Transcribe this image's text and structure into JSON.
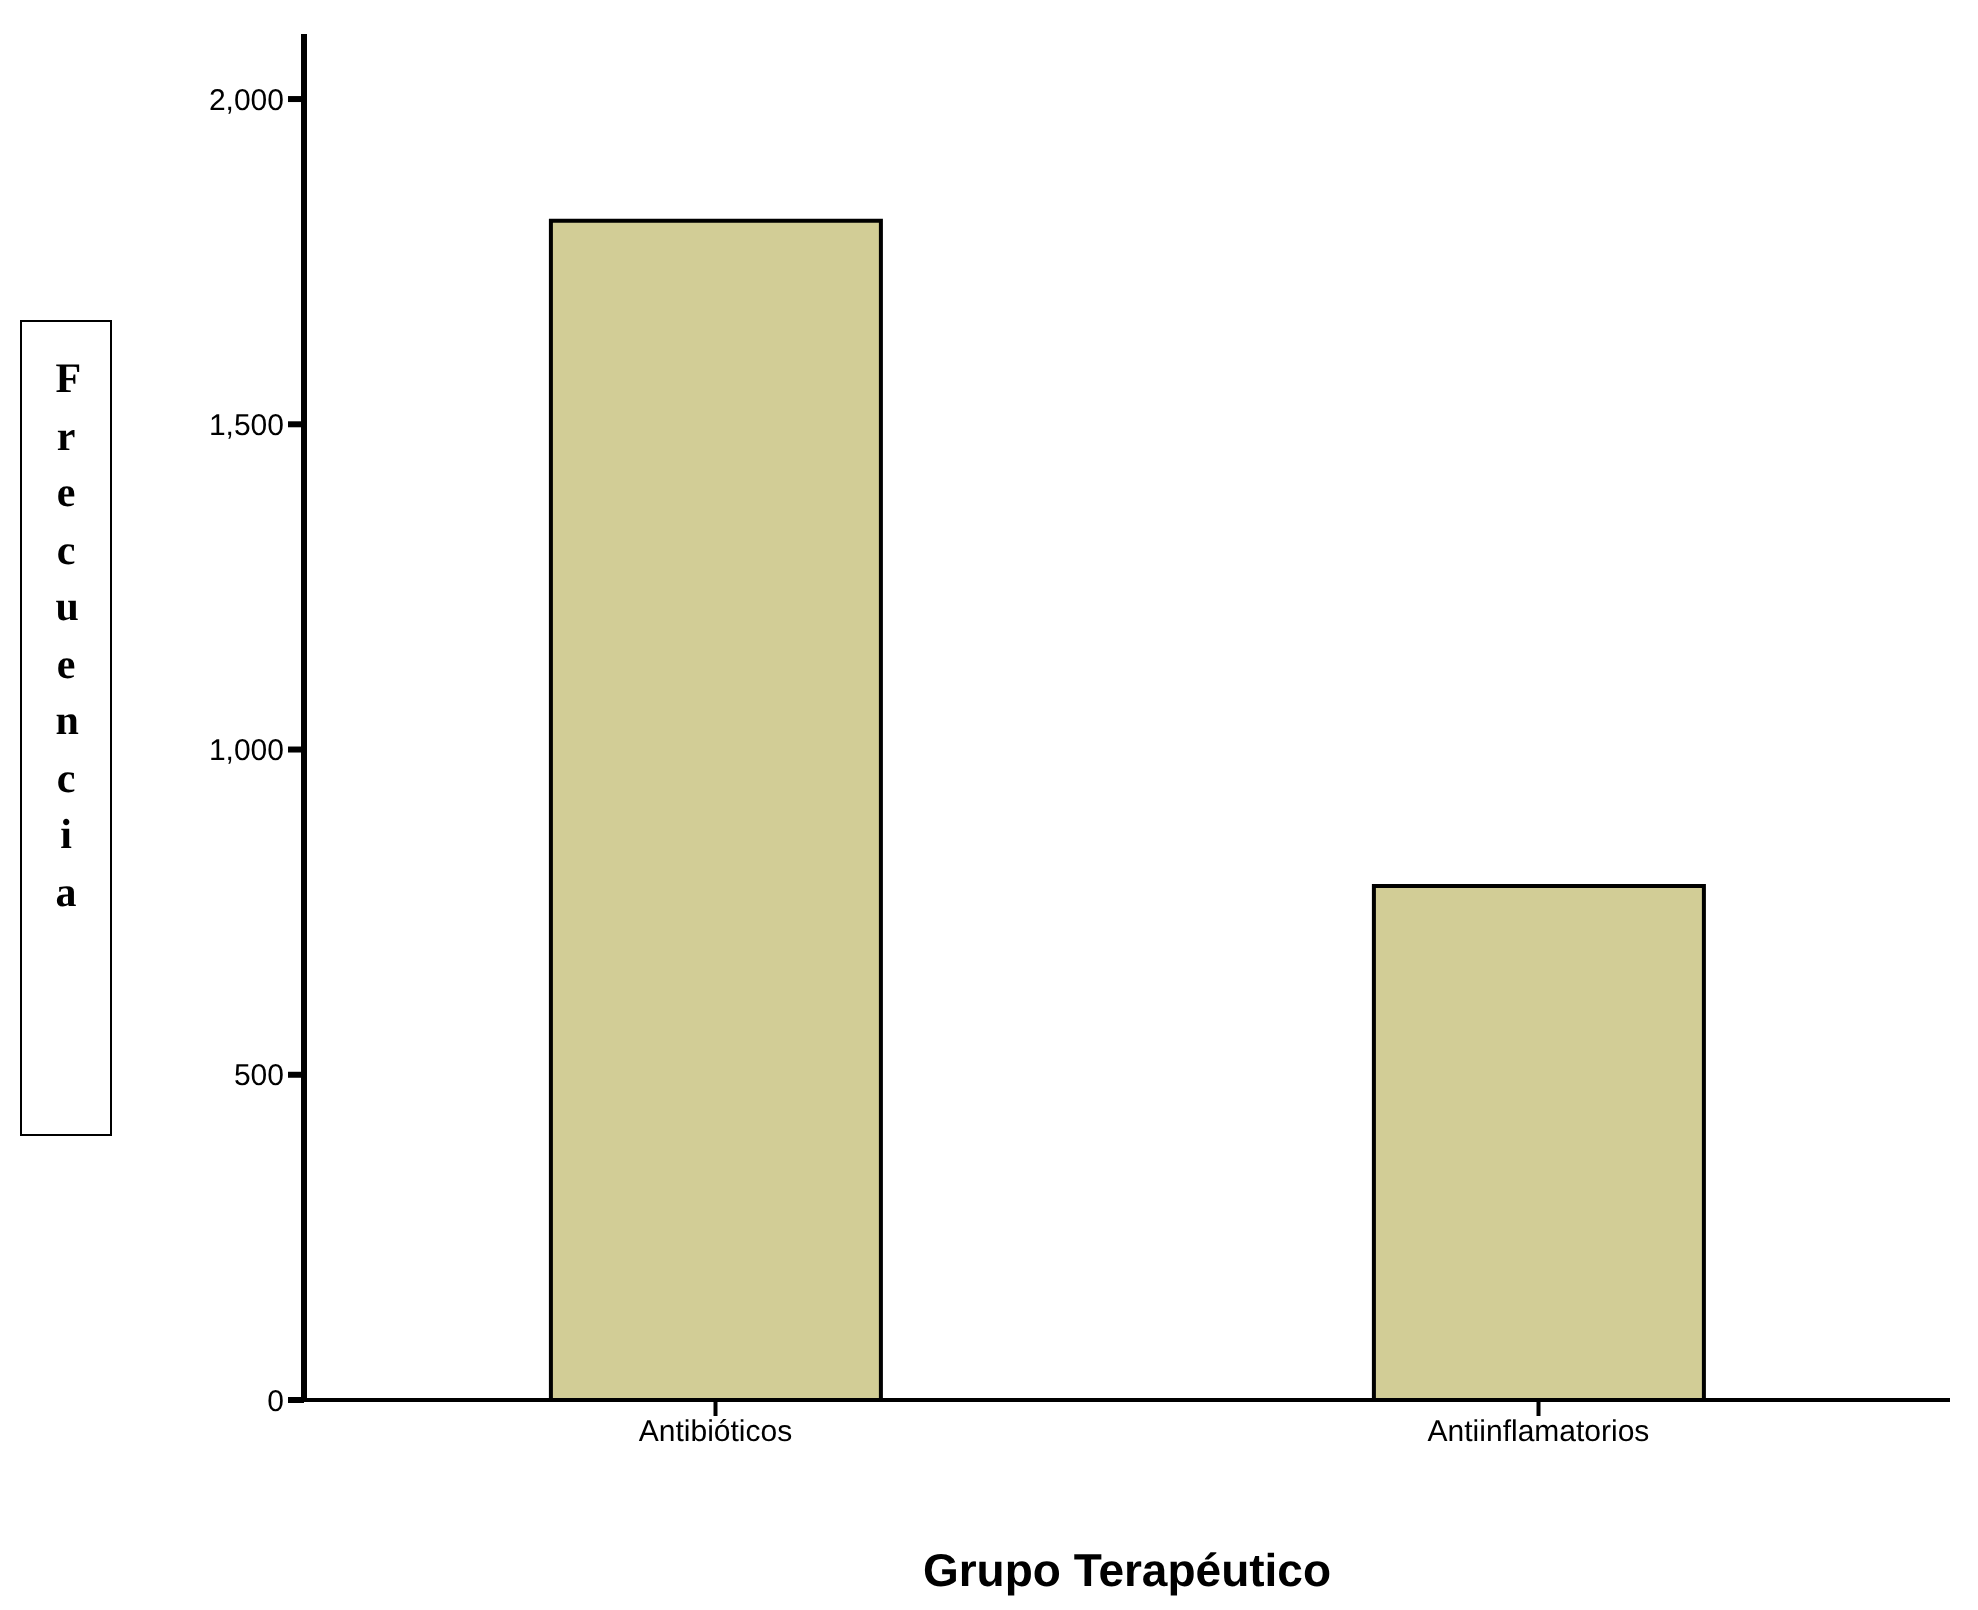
{
  "chart_data": {
    "type": "bar",
    "xlabel": "Grupo Terapéutico",
    "ylabel": "Frecuencia",
    "categories": [
      "Antibióticos",
      "Antiinflamatorios"
    ],
    "values": [
      1813,
      790
    ],
    "color": "#d2cd96",
    "ylim": [
      0,
      2100
    ],
    "yticks": [
      {
        "value": 0,
        "label": "0"
      },
      {
        "value": 500,
        "label": "500"
      },
      {
        "value": 1000,
        "label": "1,000"
      },
      {
        "value": 1500,
        "label": "1,500"
      },
      {
        "value": 2000,
        "label": "2,000"
      }
    ],
    "grid": false,
    "legend": false
  }
}
